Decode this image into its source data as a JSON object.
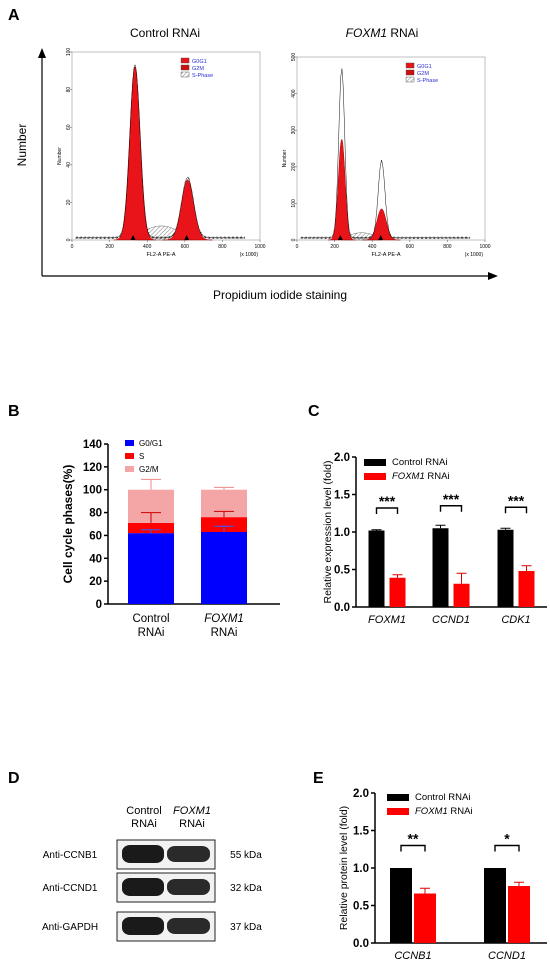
{
  "panels": {
    "A": {
      "letter": "A",
      "left_title": "Control RNAi",
      "right_title_italic": "FOXM1",
      "right_title_suffix": " RNAi",
      "y_axis_label": "Number",
      "x_axis_label": "Propidium iodide staining"
    },
    "B": {
      "letter": "B"
    },
    "C": {
      "letter": "C"
    },
    "D": {
      "letter": "D",
      "lane1_line1": "Control",
      "lane1_line2": "RNAi",
      "lane2_line1_italic": "FOXM1",
      "lane2_line2": "RNAi",
      "bands": [
        {
          "antibody": "Anti-CCNB1",
          "size": "55 kDa"
        },
        {
          "antibody": "Anti-CCND1",
          "size": "32 kDa"
        },
        {
          "antibody": "Anti-GAPDH",
          "size": "37 kDa"
        }
      ]
    },
    "E": {
      "letter": "E"
    }
  },
  "colors": {
    "black": "#000000",
    "red": "#ff0000",
    "g0g1_blue": "#0000ff",
    "s_red": "#ff0000",
    "g2m_pink": "#f4a6a6",
    "hist_fill": "#e8141a",
    "legend_text_blue": "#2b2bd6"
  },
  "chart_data": [
    {
      "id": "A-left",
      "type": "area",
      "title": "Control RNAi",
      "xlabel": "FL2-A PE-A",
      "x_unit": "(x 1000)",
      "ylabel": "Number",
      "xlim": [
        0,
        1000
      ],
      "ylim": [
        0,
        100
      ],
      "x_ticks": [
        0,
        200,
        400,
        600,
        800,
        1000
      ],
      "y_ticks": [
        0,
        20,
        40,
        60,
        80,
        100
      ],
      "x_tick_labels": [
        "0",
        "200",
        "400",
        "600",
        "800",
        "1000"
      ],
      "y_tick_labels": [
        "0",
        "20",
        "40",
        "60",
        "80",
        "100"
      ],
      "legend": [
        "G0G1",
        "G2M",
        "S-Phase"
      ],
      "legend_position": "top-right",
      "peaks": [
        {
          "name": "G0G1",
          "center": 335,
          "height": 92,
          "width": 28
        },
        {
          "name": "G2M",
          "center": 615,
          "height": 32,
          "width": 33
        }
      ],
      "markers_x": [
        325,
        610
      ]
    },
    {
      "id": "A-right",
      "type": "area",
      "title": "FOXM1 RNAi",
      "xlabel": "FL2-A PE-A",
      "x_unit": "(x 1000)",
      "ylabel": "Number",
      "xlim": [
        0,
        1000
      ],
      "ylim": [
        0,
        500
      ],
      "x_ticks": [
        0,
        200,
        400,
        600,
        800,
        1000
      ],
      "y_ticks": [
        0,
        100,
        200,
        300,
        400,
        500
      ],
      "x_tick_labels": [
        "0",
        "200",
        "400",
        "600",
        "800",
        "1000"
      ],
      "y_tick_labels": [
        "0",
        "100",
        "200",
        "300",
        "400",
        "500"
      ],
      "legend": [
        "G0G1",
        "G2M",
        "S-Phase"
      ],
      "legend_position": "top-right",
      "peaks": [
        {
          "name": "G0G1",
          "center": 238,
          "height": 275,
          "width": 18
        },
        {
          "name": "G2M",
          "center": 450,
          "height": 85,
          "width": 25
        }
      ],
      "outline_peaks": [
        {
          "center": 238,
          "height": 460,
          "width": 16
        },
        {
          "center": 450,
          "height": 210,
          "width": 18
        }
      ],
      "markers_x": [
        230,
        445
      ]
    },
    {
      "id": "B",
      "type": "bar",
      "stacked": true,
      "categories": [
        "Control\nRNAi",
        "FOXM1\nRNAi"
      ],
      "series": [
        {
          "name": "G0/G1",
          "values": [
            62,
            63
          ],
          "errors": [
            3,
            5
          ]
        },
        {
          "name": "S",
          "values": [
            9,
            13
          ],
          "errors": [
            9,
            5
          ]
        },
        {
          "name": "G2/M",
          "values": [
            29,
            24
          ],
          "errors": [
            9,
            2
          ]
        }
      ],
      "ylabel": "Cell cycle phases(%)",
      "ylim": [
        0,
        140
      ],
      "y_ticks": [
        0,
        20,
        40,
        60,
        80,
        100,
        120,
        140
      ],
      "legend_position": "top-left"
    },
    {
      "id": "C",
      "type": "bar",
      "categories": [
        "FOXM1",
        "CCND1",
        "CDK1"
      ],
      "series": [
        {
          "name": "Control RNAi",
          "values": [
            1.02,
            1.05,
            1.03
          ],
          "errors": [
            0.01,
            0.04,
            0.02
          ]
        },
        {
          "name": "FOXM1 RNAi",
          "values": [
            0.39,
            0.31,
            0.48
          ],
          "errors": [
            0.04,
            0.14,
            0.07
          ]
        }
      ],
      "ylabel": "Relative expression level (fold)",
      "ylim": [
        0,
        2.0
      ],
      "y_ticks": [
        0.0,
        0.5,
        1.0,
        1.5,
        2.0
      ],
      "y_tick_labels": [
        "0.0",
        "0.5",
        "1.0",
        "1.5",
        "2.0"
      ],
      "significance": [
        "***",
        "***",
        "***"
      ],
      "legend_position": "top-left"
    },
    {
      "id": "E",
      "type": "bar",
      "categories": [
        "CCNB1",
        "CCND1"
      ],
      "series": [
        {
          "name": "Control RNAi",
          "values": [
            1.0,
            1.0
          ],
          "errors": [
            0,
            0
          ]
        },
        {
          "name": "FOXM1 RNAi",
          "values": [
            0.66,
            0.76
          ],
          "errors": [
            0.07,
            0.05
          ]
        }
      ],
      "ylabel": "Relative protein level (fold)",
      "ylim": [
        0,
        2.0
      ],
      "y_ticks": [
        0.0,
        0.5,
        1.0,
        1.5,
        2.0
      ],
      "y_tick_labels": [
        "0.0",
        "0.5",
        "1.0",
        "1.5",
        "2.0"
      ],
      "significance": [
        "**",
        "*"
      ],
      "legend_position": "top-left"
    }
  ]
}
